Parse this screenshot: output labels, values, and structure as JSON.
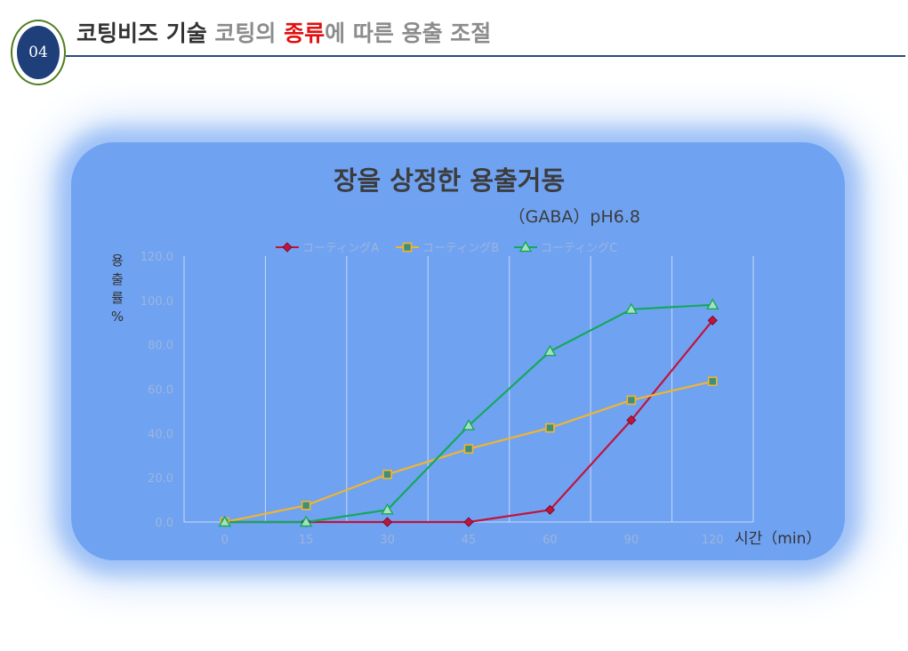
{
  "header": {
    "badge": "04",
    "title_parts": [
      {
        "text": "코팅비즈 기술 ",
        "tone": "dark"
      },
      {
        "text": "코팅의 ",
        "tone": "grey"
      },
      {
        "text": "종류",
        "tone": "red"
      },
      {
        "text": "에 따른 용출 조절",
        "tone": "grey"
      }
    ]
  },
  "chart_data": {
    "type": "line",
    "title": "장을 상정한 용출거동",
    "subtitle": "（GABA）pH6.8",
    "ylabel_chars": [
      "용",
      "출",
      "률",
      "%"
    ],
    "xlabel": "시간（min）",
    "categories": [
      "0",
      "15",
      "30",
      "45",
      "60",
      "90",
      "120"
    ],
    "ylim": [
      0,
      120
    ],
    "y_ticks": [
      "0.0",
      "20.0",
      "40.0",
      "60.0",
      "80.0",
      "100.0",
      "120.0"
    ],
    "legend_position": "top",
    "grid": "vertical",
    "series": [
      {
        "name": "コーティングA",
        "color": "#c0143c",
        "marker": "diamond",
        "values": [
          0,
          0,
          0,
          0,
          5.5,
          46,
          91
        ]
      },
      {
        "name": "コーティングB",
        "color": "#f0b52e",
        "marker": "square",
        "values": [
          0,
          7.5,
          21.5,
          33,
          42.5,
          55,
          63.5
        ]
      },
      {
        "name": "コーティングC",
        "color": "#14a85a",
        "marker": "triangle",
        "values": [
          0,
          0,
          5.5,
          43.5,
          77,
          96,
          98
        ]
      }
    ]
  }
}
